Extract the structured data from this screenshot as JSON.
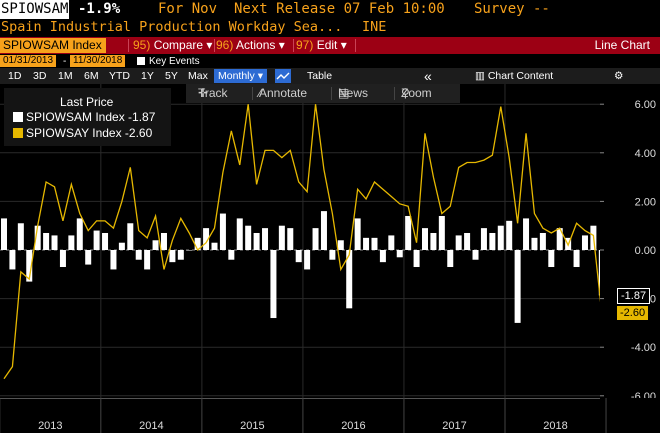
{
  "header": {
    "ticker": "SPIOWSAM",
    "change": "-1.9%",
    "for": "For Nov",
    "next_release": "Next Release 07 Feb 10:00",
    "survey": "Survey --",
    "description": "Spain Industrial Production Workday Sea...",
    "source": "INE"
  },
  "toolbar": {
    "ticker_box": "SPIOWSAM Index",
    "compare_num": "95)",
    "compare": "Compare",
    "actions_num": "96)",
    "actions": "Actions",
    "edit_num": "97)",
    "edit": "Edit",
    "chart_type": "Line Chart"
  },
  "date_range": {
    "start": "01/31/2013",
    "dash": "-",
    "end": "11/30/2018",
    "key_events": "Key Events"
  },
  "periods": [
    "1D",
    "3D",
    "1M",
    "6M",
    "YTD",
    "1Y",
    "5Y",
    "Max"
  ],
  "period_selected": "Monthly",
  "table_label": "Table",
  "collapse_glyph": "«",
  "chart_content_label": "Chart Content",
  "tools": {
    "track": "Track",
    "annotate": "Annotate",
    "news": "News",
    "zoom": "Zoom"
  },
  "legend": {
    "title": "Last Price",
    "items": [
      {
        "label": "SPIOWSAM Index -1.87",
        "color": "#ffffff"
      },
      {
        "label": "SPIOWSAY Index -2.60",
        "color": "#e6b800"
      }
    ]
  },
  "end_labels": {
    "white": "-1.87",
    "yellow": "-2.60"
  },
  "colors": {
    "accent": "#f7a21b",
    "bar": "#9c0014",
    "line": "#e6b800",
    "bars": "#ffffff"
  },
  "chart_data": {
    "type": "bar",
    "title": "",
    "xlabel": "",
    "ylabel": "",
    "ylim": [
      -6,
      7
    ],
    "yticks": [
      6,
      4,
      2,
      0,
      -2,
      -4,
      -6
    ],
    "ytick_labels": [
      "6.00",
      "4.00",
      "2.00",
      "0.00",
      "-2.00",
      "-4.00",
      "-6.00"
    ],
    "x_labels": [
      "2013",
      "2014",
      "2015",
      "2016",
      "2017",
      "2018"
    ],
    "x_start": "2013-01",
    "x_end": "2018-11",
    "grid": true,
    "series": [
      {
        "name": "SPIOWSAM Index",
        "type": "bar",
        "values": [
          1.3,
          -0.8,
          1.1,
          -1.3,
          1.0,
          0.7,
          0.6,
          -0.7,
          0.6,
          1.3,
          -0.6,
          0.8,
          0.7,
          -0.8,
          0.3,
          1.1,
          -0.4,
          -0.8,
          0.4,
          0.7,
          -0.5,
          -0.4,
          0.0,
          0.5,
          0.9,
          0.3,
          1.5,
          -0.4,
          1.3,
          1.0,
          0.7,
          0.9,
          -2.8,
          1.0,
          0.9,
          -0.5,
          -0.8,
          0.9,
          1.6,
          -0.4,
          0.4,
          -2.4,
          1.3,
          0.5,
          0.5,
          -0.5,
          0.6,
          -0.3,
          1.4,
          -0.7,
          0.9,
          0.7,
          1.4,
          -0.7,
          0.6,
          0.7,
          -0.4,
          0.9,
          0.7,
          1.0,
          1.2,
          -3.0,
          1.3,
          0.5,
          0.7,
          -0.7,
          0.9,
          0.5,
          -0.7,
          0.6,
          1.0,
          -1.87
        ]
      },
      {
        "name": "SPIOWSAY Index",
        "type": "line",
        "values": [
          -5.3,
          -4.8,
          -0.9,
          -1.2,
          1.0,
          2.8,
          2.6,
          1.2,
          2.7,
          1.5,
          0.8,
          1.2,
          1.2,
          0.9,
          2.0,
          3.4,
          0.8,
          0.5,
          1.4,
          -0.8,
          0.4,
          1.3,
          0.7,
          0.0,
          0.3,
          0.9,
          3.2,
          4.9,
          3.5,
          6.0,
          2.7,
          4.1,
          4.1,
          3.8,
          4.1,
          2.8,
          2.4,
          6.0,
          3.3,
          1.5,
          -0.8,
          -0.2,
          2.5,
          2.1,
          2.8,
          2.5,
          2.2,
          1.9,
          1.8,
          0.3,
          4.8,
          3.0,
          1.5,
          1.8,
          3.4,
          3.6,
          3.6,
          3.7,
          3.9,
          5.9,
          3.8,
          1.1,
          4.8,
          1.5,
          0.9,
          0.7,
          0.9,
          0.2,
          1.1,
          0.8,
          0.6,
          -2.6
        ]
      }
    ]
  }
}
